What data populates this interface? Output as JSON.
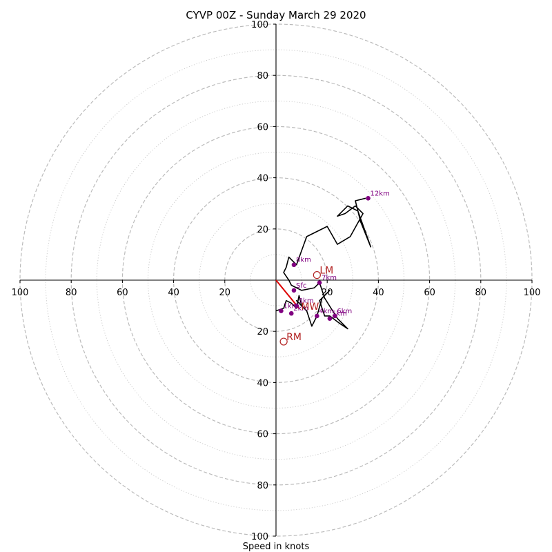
{
  "chart_data": {
    "type": "hodograph",
    "title": "CYVP 00Z - Sunday March 29 2020",
    "xlabel": "Speed in knots",
    "ylabel": "",
    "xlim": [
      -100,
      100
    ],
    "ylim": [
      -100,
      100
    ],
    "rings": [
      {
        "r": 10,
        "style": "dotted"
      },
      {
        "r": 20,
        "style": "dashed"
      },
      {
        "r": 30,
        "style": "dotted"
      },
      {
        "r": 40,
        "style": "dashed"
      },
      {
        "r": 50,
        "style": "dotted"
      },
      {
        "r": 60,
        "style": "dashed"
      },
      {
        "r": 70,
        "style": "dotted"
      },
      {
        "r": 80,
        "style": "dashed"
      },
      {
        "r": 90,
        "style": "dotted"
      },
      {
        "r": 100,
        "style": "dashed"
      }
    ],
    "tick_values": [
      20,
      40,
      60,
      80,
      100
    ],
    "x_tick_labels": [
      "100",
      "80",
      "60",
      "40",
      "20",
      "20",
      "40",
      "60",
      "80",
      "100"
    ],
    "y_tick_labels": [
      "100",
      "80",
      "60",
      "40",
      "20",
      "20",
      "40",
      "60",
      "80",
      "100"
    ],
    "trace_color": "#000000",
    "height_marker_color": "#800080",
    "motion_color": "#b22222",
    "mean_wind_vector_color": "#dd0000",
    "hodograph_trace": [
      [
        0,
        -12
      ],
      [
        3,
        -11
      ],
      [
        4,
        -8
      ],
      [
        6,
        -9
      ],
      [
        8,
        -11
      ],
      [
        9,
        -6
      ],
      [
        10,
        -10
      ],
      [
        8,
        -8
      ],
      [
        12,
        -12
      ],
      [
        14,
        -18
      ],
      [
        16,
        -14
      ],
      [
        18,
        -7
      ],
      [
        21,
        -4
      ],
      [
        17,
        -8
      ],
      [
        19,
        -14
      ],
      [
        21,
        -14
      ],
      [
        25,
        -17
      ],
      [
        28,
        -19
      ],
      [
        24,
        -15
      ],
      [
        19,
        -7
      ],
      [
        17,
        -1
      ],
      [
        15,
        -3
      ],
      [
        10,
        -4
      ],
      [
        6,
        -2
      ],
      [
        5,
        0
      ],
      [
        3,
        3
      ],
      [
        4,
        5
      ],
      [
        5,
        9
      ],
      [
        8,
        6
      ],
      [
        12,
        17
      ],
      [
        20,
        21
      ],
      [
        24,
        14
      ],
      [
        29,
        17
      ],
      [
        34,
        26
      ],
      [
        31,
        29
      ],
      [
        27,
        26
      ],
      [
        24,
        25
      ],
      [
        28,
        29
      ],
      [
        32,
        27
      ],
      [
        37,
        13
      ],
      [
        33,
        23
      ],
      [
        32,
        27
      ],
      [
        31,
        31
      ],
      [
        35,
        32
      ]
    ],
    "height_markers": [
      {
        "label": "Sfc",
        "x": 7,
        "y": -4
      },
      {
        "label": "1km",
        "x": 2,
        "y": -12
      },
      {
        "label": "2km",
        "x": 6,
        "y": -13
      },
      {
        "label": "3km",
        "x": 8,
        "y": -10
      },
      {
        "label": "4km",
        "x": 16,
        "y": -14
      },
      {
        "label": "5km",
        "x": 21,
        "y": -15
      },
      {
        "label": "6km",
        "x": 23,
        "y": -14
      },
      {
        "label": "7km",
        "x": 17,
        "y": -1
      },
      {
        "label": "8km",
        "x": 7,
        "y": 6
      },
      {
        "label": "12km",
        "x": 36,
        "y": 32
      }
    ],
    "storm_motions": [
      {
        "label": "LM",
        "x": 16,
        "y": 2
      },
      {
        "label": "RM",
        "x": 3,
        "y": -24
      }
    ],
    "mean_wind": {
      "label": "MW",
      "x": 9,
      "y": -11
    }
  }
}
